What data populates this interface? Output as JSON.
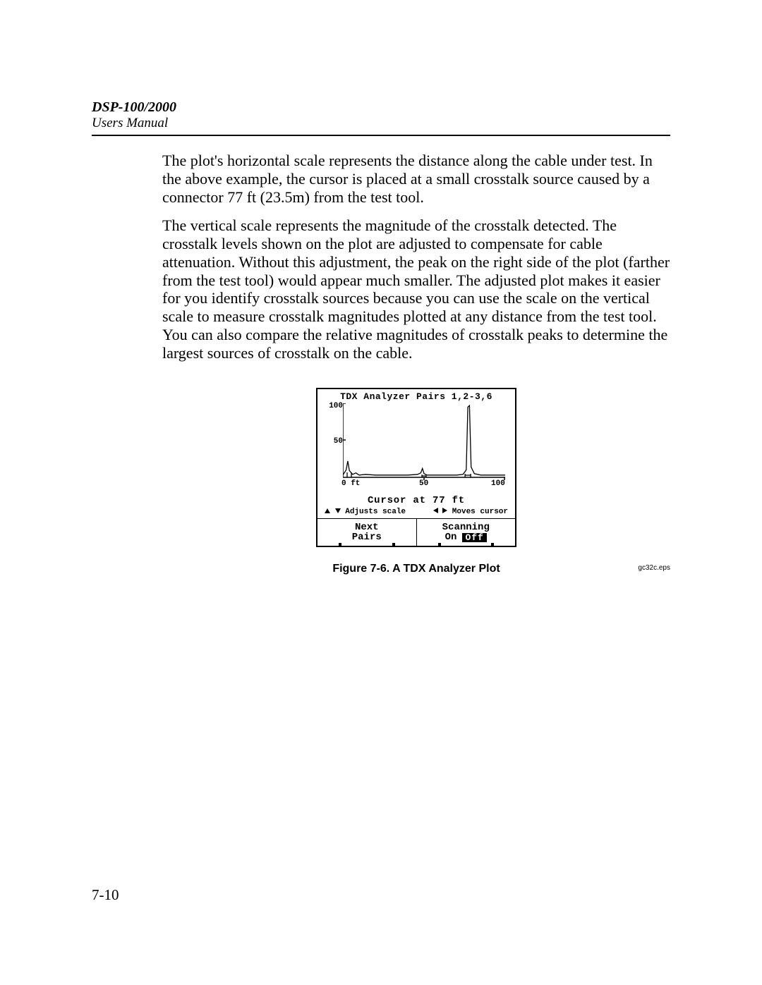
{
  "header": {
    "title": "DSP-100/2000",
    "subtitle": "Users Manual"
  },
  "paragraphs": {
    "p1": "The plot's horizontal scale represents the distance along the cable under test. In the above example, the cursor is placed at a small crosstalk source caused by a connector 77 ft (23.5m) from the test tool.",
    "p2": "The vertical scale represents the magnitude of the crosstalk detected. The crosstalk levels shown on the plot are adjusted to compensate for cable attenuation. Without this adjustment, the peak on the right side of the plot (farther from the test tool) would appear much smaller. The adjusted plot makes it easier for you identify crosstalk sources because you can use the scale on the vertical scale to measure crosstalk magnitudes plotted at any distance from the test tool. You can also compare the relative magnitudes of crosstalk peaks to determine the largest sources of crosstalk on the cable."
  },
  "lcd": {
    "title": "TDX Analyzer Pairs 1,2-3,6",
    "y_ticks": {
      "t100": "100",
      "t50": "50"
    },
    "x_ticks": {
      "t0": "0 ft",
      "t50": "50",
      "t100": "100"
    },
    "cursor_line": "Cursor at  77 ft",
    "hint_left": "Adjusts scale",
    "hint_right": "Moves cursor",
    "next_label": "Next",
    "pairs_label": "Pairs",
    "scanning_label": "Scanning",
    "on_label": "On",
    "off_label": "Off",
    "chart": {
      "type": "line",
      "x_range": [
        0,
        100
      ],
      "y_range": [
        0,
        100
      ],
      "axis_color": "#000000",
      "line_color": "#000000",
      "line_width": 1.3,
      "background": "#ffffff",
      "cursor_x": 77,
      "trace": [
        [
          0,
          3
        ],
        [
          2,
          10
        ],
        [
          3,
          22
        ],
        [
          4,
          9
        ],
        [
          6,
          4
        ],
        [
          8,
          6
        ],
        [
          10,
          3
        ],
        [
          14,
          4
        ],
        [
          20,
          3
        ],
        [
          30,
          3
        ],
        [
          40,
          3
        ],
        [
          46,
          4
        ],
        [
          48,
          6
        ],
        [
          49,
          12
        ],
        [
          50,
          5
        ],
        [
          52,
          3
        ],
        [
          60,
          3
        ],
        [
          70,
          3
        ],
        [
          74,
          4
        ],
        [
          76,
          10
        ],
        [
          77,
          95
        ],
        [
          78,
          97
        ],
        [
          79,
          14
        ],
        [
          81,
          5
        ],
        [
          85,
          3
        ],
        [
          90,
          3
        ],
        [
          100,
          3
        ]
      ]
    }
  },
  "eps_label": "gc32c.eps",
  "caption": "Figure 7-6. A TDX Analyzer Plot",
  "page_number": "7-10"
}
